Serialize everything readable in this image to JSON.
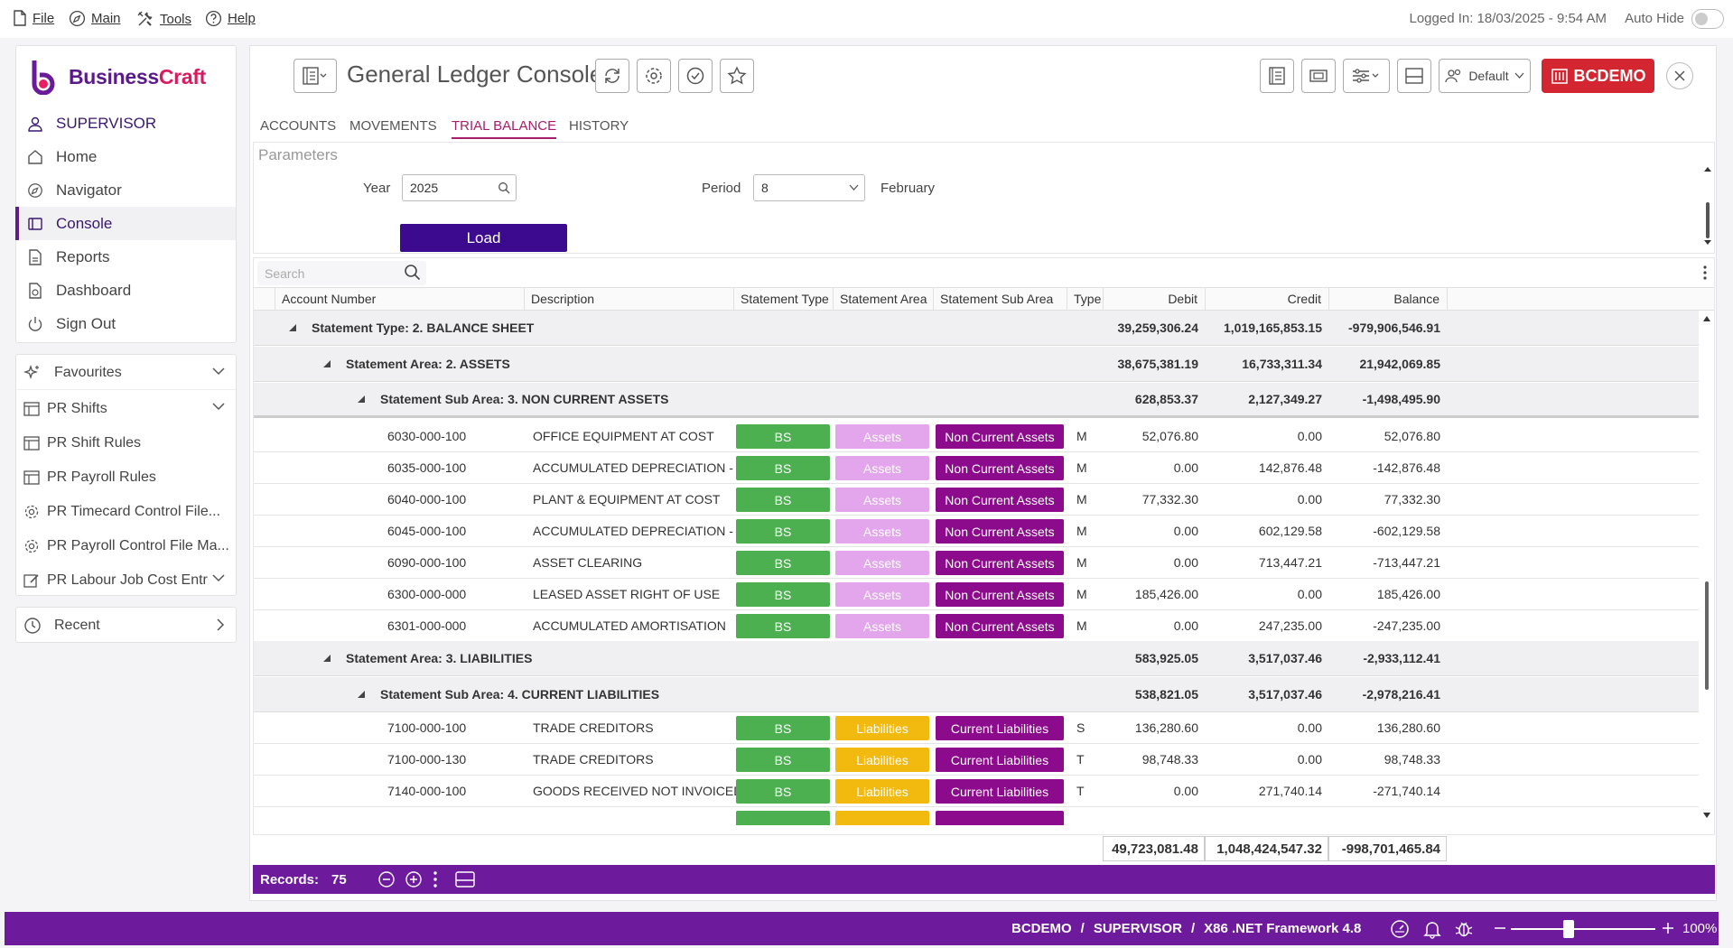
{
  "menu": {
    "file": "File",
    "main": "Main",
    "tools": "Tools",
    "help": "Help",
    "login_info": "Logged In: 18/03/2025 - 9:54 AM",
    "auto_hide": "Auto Hide"
  },
  "brand": {
    "name_a": "Business",
    "name_b": "Craft"
  },
  "sidebar": {
    "user": "SUPERVISOR",
    "items": [
      {
        "label": "Home",
        "icon": "home-icon"
      },
      {
        "label": "Navigator",
        "icon": "compass-icon"
      },
      {
        "label": "Console",
        "icon": "console-icon"
      },
      {
        "label": "Reports",
        "icon": "report-icon"
      },
      {
        "label": "Dashboard",
        "icon": "dashboard-icon"
      },
      {
        "label": "Sign Out",
        "icon": "power-icon"
      }
    ],
    "favourites_label": "Favourites",
    "favourites": [
      {
        "label": "PR  Shifts"
      },
      {
        "label": "PR  Shift Rules"
      },
      {
        "label": "PR  Payroll Rules"
      },
      {
        "label": "PR  Timecard Control File..."
      },
      {
        "label": "PR  Payroll Control File Ma..."
      },
      {
        "label": "PR  Labour Job Cost Entr"
      }
    ],
    "recent_label": "Recent"
  },
  "console": {
    "title": "General Ledger Console",
    "default_label": "Default",
    "company": "BCDEMO",
    "tabs": [
      "ACCOUNTS",
      "MOVEMENTS",
      "TRIAL BALANCE",
      "HISTORY"
    ],
    "active_tab": "TRIAL BALANCE"
  },
  "params": {
    "heading": "Parameters",
    "year_label": "Year",
    "year_value": "2025",
    "period_label": "Period",
    "period_value": "8",
    "period_name": "February",
    "load_label": "Load"
  },
  "grid": {
    "search_placeholder": "Search",
    "columns": [
      "Account Number",
      "Description",
      "Statement Type",
      "Statement Area",
      "Statement Sub Area",
      "Type",
      "Debit",
      "Credit",
      "Balance"
    ],
    "groups": {
      "g1": {
        "label": "Statement Type: 2. BALANCE SHEET",
        "debit": "39,259,306.24",
        "credit": "1,019,165,853.15",
        "balance": "-979,906,546.91"
      },
      "g2": {
        "label": "Statement Area: 2. ASSETS",
        "debit": "38,675,381.19",
        "credit": "16,733,311.34",
        "balance": "21,942,069.85"
      },
      "g3": {
        "label": "Statement Sub Area: 3. NON CURRENT ASSETS",
        "debit": "628,853.37",
        "credit": "2,127,349.27",
        "balance": "-1,498,495.90"
      },
      "g4": {
        "label": "Statement Area: 3. LIABILITIES",
        "debit": "583,925.05",
        "credit": "3,517,037.46",
        "balance": "-2,933,112.41"
      },
      "g5": {
        "label": "Statement Sub Area: 4. CURRENT LIABILITIES",
        "debit": "538,821.05",
        "credit": "3,517,037.46",
        "balance": "-2,978,216.41"
      }
    },
    "rows_a": [
      {
        "acct": "6030-000-100",
        "desc": "OFFICE EQUIPMENT AT COST",
        "st": "BS",
        "sa": "Assets",
        "ssa": "Non Current Assets",
        "type": "M",
        "debit": "52,076.80",
        "credit": "0.00",
        "balance": "52,076.80"
      },
      {
        "acct": "6035-000-100",
        "desc": "ACCUMULATED DEPRECIATION - OFFICE...",
        "st": "BS",
        "sa": "Assets",
        "ssa": "Non Current Assets",
        "type": "M",
        "debit": "0.00",
        "credit": "142,876.48",
        "balance": "-142,876.48"
      },
      {
        "acct": "6040-000-100",
        "desc": "PLANT & EQUIPMENT AT COST",
        "st": "BS",
        "sa": "Assets",
        "ssa": "Non Current Assets",
        "type": "M",
        "debit": "77,332.30",
        "credit": "0.00",
        "balance": "77,332.30"
      },
      {
        "acct": "6045-000-100",
        "desc": "ACCUMULATED DEPRECIATION - PLANT...",
        "st": "BS",
        "sa": "Assets",
        "ssa": "Non Current Assets",
        "type": "M",
        "debit": "0.00",
        "credit": "602,129.58",
        "balance": "-602,129.58"
      },
      {
        "acct": "6090-000-100",
        "desc": "ASSET CLEARING",
        "st": "BS",
        "sa": "Assets",
        "ssa": "Non Current Assets",
        "type": "M",
        "debit": "0.00",
        "credit": "713,447.21",
        "balance": "-713,447.21"
      },
      {
        "acct": "6300-000-000",
        "desc": "LEASED ASSET RIGHT OF USE",
        "st": "BS",
        "sa": "Assets",
        "ssa": "Non Current Assets",
        "type": "M",
        "debit": "185,426.00",
        "credit": "0.00",
        "balance": "185,426.00"
      },
      {
        "acct": "6301-000-000",
        "desc": "ACCUMULATED AMORTISATION",
        "st": "BS",
        "sa": "Assets",
        "ssa": "Non Current Assets",
        "type": "M",
        "debit": "0.00",
        "credit": "247,235.00",
        "balance": "-247,235.00"
      }
    ],
    "rows_b": [
      {
        "acct": "7100-000-100",
        "desc": "TRADE CREDITORS",
        "st": "BS",
        "sa": "Liabilities",
        "ssa": "Current Liabilities",
        "type": "S",
        "debit": "136,280.60",
        "credit": "0.00",
        "balance": "136,280.60"
      },
      {
        "acct": "7100-000-130",
        "desc": "TRADE CREDITORS",
        "st": "BS",
        "sa": "Liabilities",
        "ssa": "Current Liabilities",
        "type": "T",
        "debit": "98,748.33",
        "credit": "0.00",
        "balance": "98,748.33"
      },
      {
        "acct": "7140-000-100",
        "desc": "GOODS RECEIVED NOT INVOICED",
        "st": "BS",
        "sa": "Liabilities",
        "ssa": "Current Liabilities",
        "type": "T",
        "debit": "0.00",
        "credit": "271,740.14",
        "balance": "-271,740.14"
      }
    ],
    "totals": {
      "debit": "49,723,081.48",
      "credit": "1,048,424,547.32",
      "balance": "-998,701,465.84"
    },
    "records_label": "Records:",
    "records_count": "75"
  },
  "status": {
    "company": "BCDEMO",
    "sep": "/",
    "user": "SUPERVISOR",
    "platform": "X86 .NET Framework 4.8",
    "zoom": "100%",
    "zoom_level_fraction": 0.4
  },
  "colors": {
    "brand_purple": "#6d1a9c",
    "load_button": "#3b0a8f",
    "company_red": "#d32630",
    "bs_green": "#4caf50",
    "assets_pink": "#e3a6ec",
    "liab_yellow": "#f2b90f",
    "sub_area_purple": "#8c0a8c"
  }
}
